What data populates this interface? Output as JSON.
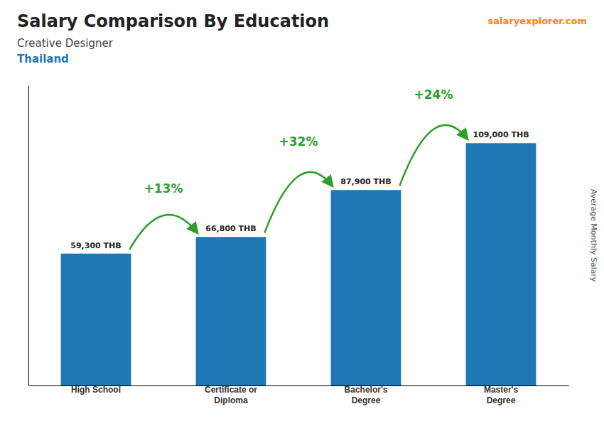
{
  "chart_data": {
    "type": "bar",
    "title": "Salary Comparison By Education",
    "subtitle": [
      "Creative Designer",
      "Thailand"
    ],
    "ylabel": "Average Monthly Salary",
    "categories": [
      "High School",
      "Certificate or\nDiploma",
      "Bachelor's\nDegree",
      "Master's\nDegree"
    ],
    "values": [
      59300,
      66800,
      87900,
      109000
    ],
    "value_labels": [
      "59,300 THB",
      "66,800 THB",
      "87,900 THB",
      "109,000 THB"
    ],
    "data_labels": true,
    "annotations": [
      "+13%",
      "+32%",
      "+24%",
      "salaryexplorer.com"
    ],
    "ylim": [
      0,
      135000
    ],
    "grid": false,
    "tick_labels": "x"
  }
}
